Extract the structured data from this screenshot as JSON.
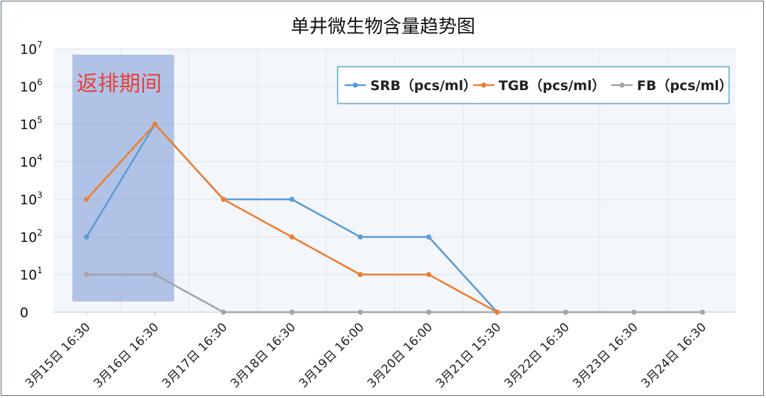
{
  "chart_data": {
    "type": "line",
    "title": "单井微生物含量趋势图",
    "xlabel": "",
    "ylabel": "",
    "yscale": "log",
    "ylim": [
      1,
      10000000
    ],
    "y_ticks": [
      {
        "value": 1,
        "base": "0",
        "exp": ""
      },
      {
        "value": 10,
        "base": "10",
        "exp": "1"
      },
      {
        "value": 100,
        "base": "10",
        "exp": "2"
      },
      {
        "value": 1000,
        "base": "10",
        "exp": "3"
      },
      {
        "value": 10000,
        "base": "10",
        "exp": "4"
      },
      {
        "value": 100000,
        "base": "10",
        "exp": "5"
      },
      {
        "value": 1000000,
        "base": "10",
        "exp": "6"
      },
      {
        "value": 10000000,
        "base": "10",
        "exp": "7"
      }
    ],
    "categories": [
      "3月15日 16:30",
      "3月16日 16:30",
      "3月17日 16:30",
      "3月18日 16:30",
      "3月19日 16:00",
      "3月20日 16:00",
      "3月21日 15:30",
      "3月22日 16:30",
      "3月23日 16:30",
      "3月24日 16:30"
    ],
    "series": [
      {
        "name": "SRB（pcs/ml）",
        "color": "#5b9bd5",
        "values": [
          100,
          100000,
          1000,
          1000,
          100,
          100,
          0,
          null,
          null,
          null
        ]
      },
      {
        "name": "TGB（pcs/ml）",
        "color": "#ed7d31",
        "values": [
          1000,
          100000,
          1000,
          100,
          10,
          10,
          0,
          null,
          null,
          null
        ]
      },
      {
        "name": "FB（pcs/ml）",
        "color": "#a5a5a5",
        "values": [
          10,
          10,
          0,
          0,
          0,
          0,
          0,
          0,
          0,
          0
        ]
      }
    ],
    "annotation": {
      "text": "返排期间",
      "x_from": 0,
      "x_to": 1,
      "color": "#4472c4"
    },
    "grid": true,
    "legend_position": "top-right"
  }
}
